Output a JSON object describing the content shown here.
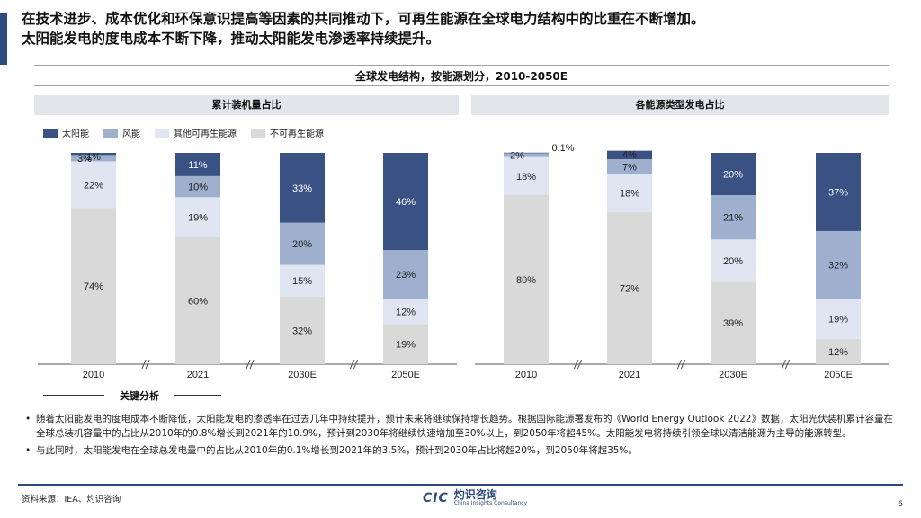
{
  "headline": [
    "在技术进步、成本优化和环保意识提高等因素的共同推动下，可再生能源在全球电力结构中的比重在不断增加。",
    "太阳能发电的度电成本不断下降，推动太阳能发电渗透率持续提升。"
  ],
  "colors": {
    "solar": "#3a5184",
    "wind": "#9eb0cd",
    "other": "#dfe6f1",
    "nonrenew": "#d9d9d9",
    "accent": "#2f4a7c"
  },
  "legend": [
    {
      "key": "solar",
      "label": "太阳能"
    },
    {
      "key": "wind",
      "label": "风能"
    },
    {
      "key": "other",
      "label": "其他可再生能源"
    },
    {
      "key": "nonrenew",
      "label": "不可再生能源"
    }
  ],
  "chart_data": [
    {
      "type": "bar",
      "stacked": true,
      "title": "全球发电结构，按能源划分，2010-2050E",
      "panel_title": "累计装机量占比",
      "categories": [
        "2010",
        "2021",
        "2030E",
        "2050E"
      ],
      "ylim": [
        0,
        100
      ],
      "series": [
        {
          "name": "不可再生能源",
          "key": "nonrenew",
          "values": [
            74,
            60,
            32,
            19
          ],
          "labels": [
            "74%",
            "60%",
            "32%",
            "19%"
          ]
        },
        {
          "name": "其他可再生能源",
          "key": "other",
          "values": [
            22,
            19,
            15,
            12
          ],
          "labels": [
            "22%",
            "19%",
            "15%",
            "12%"
          ]
        },
        {
          "name": "风能",
          "key": "wind",
          "values": [
            3,
            10,
            20,
            23
          ],
          "labels": [
            "3%",
            "10%",
            "20%",
            "23%"
          ]
        },
        {
          "name": "太阳能",
          "key": "solar",
          "values": [
            1,
            11,
            33,
            46
          ],
          "labels": [
            "1%",
            "11%",
            "33%",
            "46%"
          ]
        }
      ]
    },
    {
      "type": "bar",
      "stacked": true,
      "panel_title": "各能源类型发电占比",
      "categories": [
        "2010",
        "2021",
        "2030E",
        "2050E"
      ],
      "ylim": [
        0,
        100
      ],
      "series": [
        {
          "name": "不可再生能源",
          "key": "nonrenew",
          "values": [
            80,
            72,
            39,
            12
          ],
          "labels": [
            "80%",
            "72%",
            "39%",
            "12%"
          ]
        },
        {
          "name": "其他可再生能源",
          "key": "other",
          "values": [
            18,
            18,
            20,
            19
          ],
          "labels": [
            "18%",
            "18%",
            "20%",
            "19%"
          ]
        },
        {
          "name": "风能",
          "key": "wind",
          "values": [
            2,
            7,
            21,
            32
          ],
          "labels": [
            "2%",
            "7%",
            "21%",
            "32%"
          ]
        },
        {
          "name": "太阳能",
          "key": "solar",
          "values": [
            0.1,
            4,
            20,
            37
          ],
          "labels": [
            "0.1%",
            "4%",
            "20%",
            "37%"
          ]
        }
      ]
    }
  ],
  "key_analysis": {
    "title": "关键分析",
    "bullets": [
      "随着太阳能发电的度电成本不断降低，太阳能发电的渗透率在过去几年中持续提升，预计未来将继续保持增长趋势。根据国际能源署发布的《World Energy Outlook 2022》数据，太阳光伏装机累计容量在全球总装机容量中的占比从2010年的0.8%增长到2021年的10.9%，预计到2030年将继续快速增加至30%以上，到2050年将超45%。太阳能发电将持续引领全球以清洁能源为主导的能源转型。",
      "与此同时，太阳能发电在全球总发电量中的占比从2010年的0.1%增长到2021年的3.5%，预计到2030年占比将超20%，到2050年将超35%。"
    ]
  },
  "footer": {
    "source": "资料来源：IEA、灼识咨询",
    "logo_mark": "CIC",
    "logo_text": "灼识咨询",
    "logo_sub": "China Insights Consultancy",
    "page": "6"
  }
}
